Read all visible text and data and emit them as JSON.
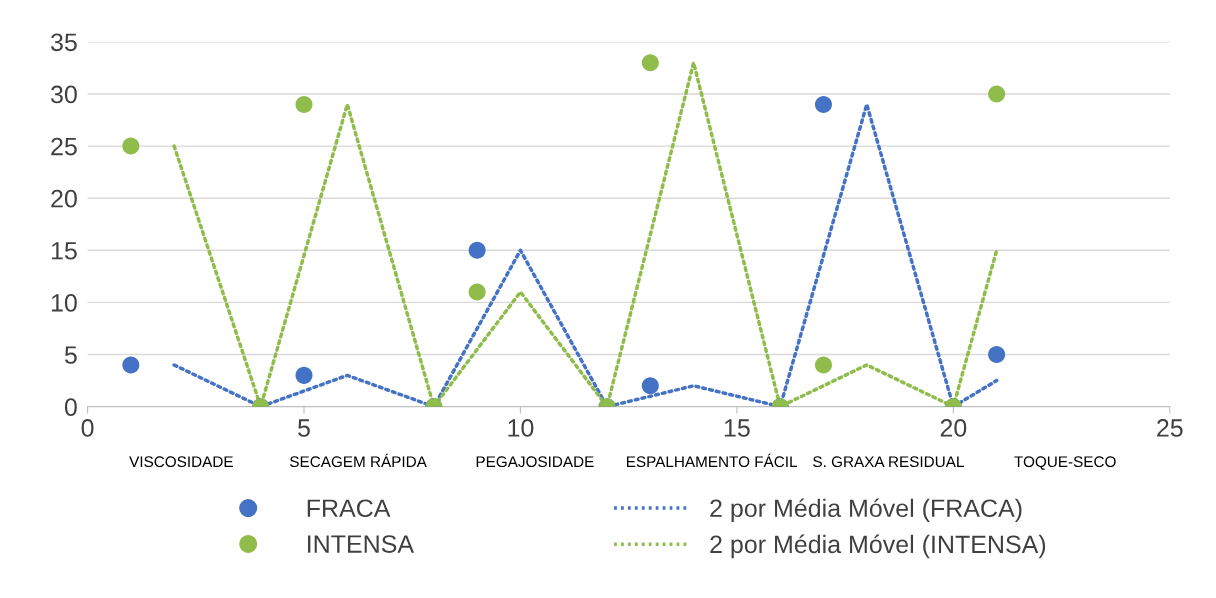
{
  "chart_data": {
    "type": "scatter",
    "xlim": [
      0,
      25
    ],
    "xticks": [
      0,
      5,
      10,
      15,
      20,
      25
    ],
    "ylim": [
      0,
      35
    ],
    "yticks": [
      0,
      5,
      10,
      15,
      20,
      25,
      30,
      35
    ],
    "grid": "y",
    "legend": "bottom",
    "marker": "circle",
    "series": [
      {
        "name": "FRACA",
        "color": "#4472c4",
        "x": [
          1,
          4,
          5,
          8,
          9,
          12,
          13,
          16,
          17,
          20,
          21
        ],
        "values": [
          4,
          0,
          3,
          0,
          15,
          0,
          2,
          0,
          29,
          0,
          5
        ]
      },
      {
        "name": "INTENSA",
        "color": "#8fbc4a",
        "x": [
          1,
          4,
          5,
          8,
          9,
          12,
          13,
          16,
          17,
          20,
          21
        ],
        "values": [
          25,
          0,
          29,
          0,
          11,
          0,
          33,
          0,
          4,
          0,
          30
        ]
      },
      {
        "name": "2 por Média Móvel (FRACA)",
        "type": "line",
        "line_style": "dotted",
        "marker": "none",
        "color": "#4472c4",
        "x": [
          2,
          4,
          6,
          8,
          10,
          12,
          14,
          16,
          18,
          20,
          21
        ],
        "values": [
          4,
          0,
          3,
          0,
          15,
          0,
          2,
          0,
          29,
          0,
          2.5
        ]
      },
      {
        "name": "2 por Média Móvel (INTENSA)",
        "type": "line",
        "line_style": "dotted",
        "marker": "none",
        "color": "#8fbc4a",
        "x": [
          2,
          4,
          6,
          8,
          10,
          12,
          14,
          16,
          18,
          20,
          21
        ],
        "values": [
          25,
          0,
          29,
          0,
          11,
          0,
          33,
          0,
          4,
          0,
          15
        ]
      }
    ],
    "annotations": [
      "VISCOSIDADE",
      "SECAGEM RÁPIDA",
      "PEGAJOSIDADE",
      "ESPALHAMENTO FÁCIL",
      "S. GRAXA RESIDUAL",
      "TOQUE-SECO"
    ]
  }
}
